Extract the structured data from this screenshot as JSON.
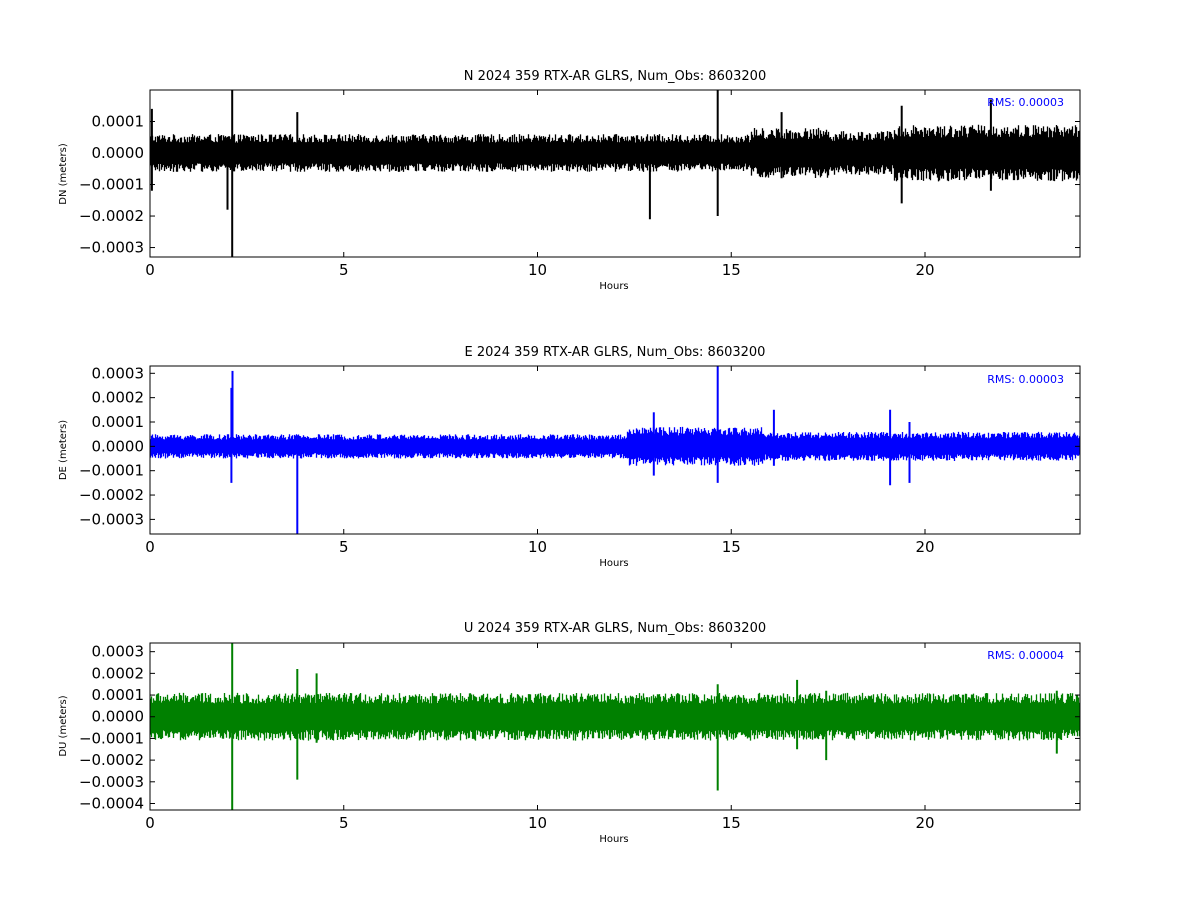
{
  "chart_data": [
    {
      "type": "line",
      "title": "N 2024 359 RTX-AR  GLRS, Num_Obs: 8603200",
      "xlabel": "Hours",
      "ylabel": "DN (meters)",
      "xlim": [
        0,
        24
      ],
      "ylim": [
        -0.00033,
        0.0002
      ],
      "xticks": [
        0,
        5,
        10,
        15,
        20
      ],
      "yticks": [
        -0.0003,
        -0.0002,
        -0.0001,
        0.0,
        0.0001
      ],
      "ytick_labels": [
        "−0.0003",
        "−0.0002",
        "−0.0001",
        "0.0000",
        "0.0001"
      ],
      "rms_text": "RMS:  0.00003",
      "color": "#000000",
      "series": [
        {
          "base_noise_amplitude": 6e-05,
          "segments": [
            {
              "from": 0,
              "to": 15.5,
              "amplitude": 6e-05
            },
            {
              "from": 15.5,
              "to": 17.5,
              "amplitude": 8e-05
            },
            {
              "from": 17.5,
              "to": 19.2,
              "amplitude": 7e-05
            },
            {
              "from": 19.2,
              "to": 24,
              "amplitude": 9e-05
            }
          ],
          "spikes": [
            {
              "x": 0.05,
              "high": 0.00014,
              "low": -0.00012
            },
            {
              "x": 2.0,
              "high": 5e-05,
              "low": -0.00018
            },
            {
              "x": 2.12,
              "high": 0.0002,
              "low": -0.00033
            },
            {
              "x": 3.8,
              "high": 0.00013,
              "low": -4e-05
            },
            {
              "x": 12.9,
              "high": 3e-05,
              "low": -0.00021
            },
            {
              "x": 14.65,
              "high": 0.0002,
              "low": -0.0002
            },
            {
              "x": 16.3,
              "high": 0.00013,
              "low": -8e-05
            },
            {
              "x": 19.4,
              "high": 0.00015,
              "low": -0.00016
            },
            {
              "x": 21.7,
              "high": 0.00017,
              "low": -0.00012
            }
          ]
        }
      ]
    },
    {
      "type": "line",
      "title": "E 2024 359 RTX-AR  GLRS, Num_Obs: 8603200",
      "xlabel": "Hours",
      "ylabel": "DE (meters)",
      "xlim": [
        0,
        24
      ],
      "ylim": [
        -0.00036,
        0.00033
      ],
      "xticks": [
        0,
        5,
        10,
        15,
        20
      ],
      "yticks": [
        -0.0003,
        -0.0002,
        -0.0001,
        0.0,
        0.0001,
        0.0002,
        0.0003
      ],
      "ytick_labels": [
        "−0.0003",
        "−0.0002",
        "−0.0001",
        "0.0000",
        "0.0001",
        "0.0002",
        "0.0003"
      ],
      "rms_text": "RMS:  0.00003",
      "color": "#0000ff",
      "series": [
        {
          "base_noise_amplitude": 5e-05,
          "segments": [
            {
              "from": 0,
              "to": 12.3,
              "amplitude": 5e-05
            },
            {
              "from": 12.3,
              "to": 15.8,
              "amplitude": 8e-05
            },
            {
              "from": 15.8,
              "to": 18.8,
              "amplitude": 6e-05
            },
            {
              "from": 18.8,
              "to": 24,
              "amplitude": 6e-05
            }
          ],
          "spikes": [
            {
              "x": 2.1,
              "high": 0.00024,
              "low": -0.00015
            },
            {
              "x": 2.13,
              "high": 0.00031,
              "low": -2e-05
            },
            {
              "x": 3.8,
              "high": 2e-05,
              "low": -0.00036
            },
            {
              "x": 13.0,
              "high": 0.00014,
              "low": -0.00012
            },
            {
              "x": 14.65,
              "high": 0.00033,
              "low": -0.00015
            },
            {
              "x": 16.1,
              "high": 0.00015,
              "low": -8e-05
            },
            {
              "x": 19.1,
              "high": 0.00015,
              "low": -0.00016
            },
            {
              "x": 19.6,
              "high": 0.0001,
              "low": -0.00015
            }
          ]
        }
      ]
    },
    {
      "type": "line",
      "title": "U 2024 359 RTX-AR  GLRS, Num_Obs: 8603200",
      "xlabel": "Hours",
      "ylabel": "DU (meters)",
      "xlim": [
        0,
        24
      ],
      "ylim": [
        -0.00043,
        0.00034
      ],
      "xticks": [
        0,
        5,
        10,
        15,
        20
      ],
      "yticks": [
        -0.0004,
        -0.0003,
        -0.0002,
        -0.0001,
        0.0,
        0.0001,
        0.0002,
        0.0003
      ],
      "ytick_labels": [
        "−0.0004",
        "−0.0003",
        "−0.0002",
        "−0.0001",
        "0.0000",
        "0.0001",
        "0.0002",
        "0.0003"
      ],
      "rms_text": "RMS:  0.00004",
      "color": "#008000",
      "series": [
        {
          "base_noise_amplitude": 0.00011,
          "segments": [
            {
              "from": 0,
              "to": 24,
              "amplitude": 0.00011
            }
          ],
          "spikes": [
            {
              "x": 2.12,
              "high": 0.00034,
              "low": -0.00043
            },
            {
              "x": 3.8,
              "high": 0.00022,
              "low": -0.00029
            },
            {
              "x": 4.3,
              "high": 0.0002,
              "low": -0.00012
            },
            {
              "x": 14.65,
              "high": 0.00015,
              "low": -0.00034
            },
            {
              "x": 16.7,
              "high": 0.00017,
              "low": -0.00015
            },
            {
              "x": 17.45,
              "high": 0.00012,
              "low": -0.0002
            },
            {
              "x": 23.4,
              "high": 0.00012,
              "low": -0.00017
            }
          ]
        }
      ]
    }
  ]
}
